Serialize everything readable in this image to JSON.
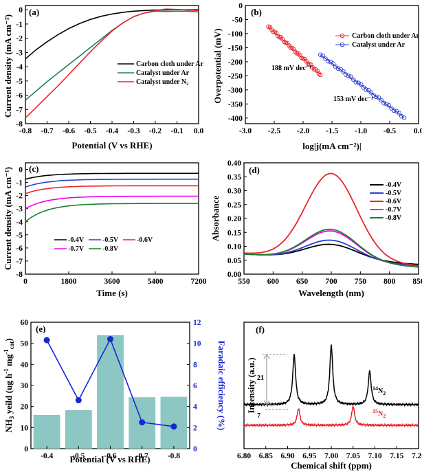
{
  "chart_data": [
    {
      "panel": "(a)",
      "type": "line",
      "xlabel": "Potential (V vs RHE)",
      "ylabel": "Current density (mA cm⁻²)",
      "xlim": [
        -0.8,
        0.0
      ],
      "ylim": [
        -8,
        0.3
      ],
      "xticks": [
        -0.8,
        -0.7,
        -0.6,
        -0.5,
        -0.4,
        -0.3,
        -0.2,
        -0.1,
        0.0
      ],
      "xtick_labels": [
        "-0.8",
        "-0.7",
        "-0.6",
        "-0.5",
        "-0.4",
        "-0.3",
        "-0.2",
        "-0.1",
        "0.0"
      ],
      "yticks": [
        0,
        -1,
        -2,
        -3,
        -4,
        -5,
        -6,
        -7,
        -8
      ],
      "ytick_labels": [
        "0",
        "-1",
        "-2",
        "-3",
        "-4",
        "-5",
        "-6",
        "-7",
        "-8"
      ],
      "legend_position": "center-right",
      "series": [
        {
          "name": "Carbon cloth under Ar",
          "color": "#000000",
          "x": [
            -0.8,
            -0.75,
            -0.7,
            -0.65,
            -0.6,
            -0.55,
            -0.5,
            -0.45,
            -0.4,
            -0.35,
            -0.3,
            -0.25,
            -0.2,
            -0.15,
            -0.1,
            -0.05,
            0.0
          ],
          "y": [
            -3.45,
            -2.8,
            -2.25,
            -1.75,
            -1.32,
            -0.97,
            -0.68,
            -0.46,
            -0.3,
            -0.18,
            -0.1,
            -0.05,
            -0.02,
            -0.01,
            0.0,
            0.0,
            0.0
          ]
        },
        {
          "name": "Catalyst under Ar",
          "color": "#1b7f5e",
          "x": [
            -0.8,
            -0.75,
            -0.7,
            -0.65,
            -0.6,
            -0.55,
            -0.5,
            -0.45,
            -0.4,
            -0.35,
            -0.3,
            -0.25,
            -0.2,
            -0.15,
            -0.1,
            -0.05,
            0.0
          ],
          "y": [
            -6.35,
            -5.7,
            -5.05,
            -4.45,
            -3.85,
            -3.25,
            -2.65,
            -2.05,
            -1.45,
            -0.92,
            -0.48,
            -0.22,
            -0.1,
            -0.12,
            -0.1,
            -0.1,
            -0.15
          ]
        },
        {
          "name": "Catalyst under N₂",
          "color": "#e8252b",
          "x": [
            -0.8,
            -0.75,
            -0.7,
            -0.65,
            -0.6,
            -0.55,
            -0.5,
            -0.45,
            -0.4,
            -0.35,
            -0.3,
            -0.25,
            -0.2,
            -0.15,
            -0.1,
            -0.05,
            0.0
          ],
          "y": [
            -7.6,
            -6.85,
            -6.1,
            -5.35,
            -4.55,
            -3.75,
            -2.95,
            -2.2,
            -1.5,
            -0.92,
            -0.48,
            -0.22,
            -0.05,
            0.05,
            0.02,
            -0.02,
            -0.05
          ]
        }
      ]
    },
    {
      "panel": "(b)",
      "type": "scatter",
      "xlabel": "log|j(mA cm⁻²)|",
      "ylabel": "Overpotential (mV)",
      "xlim": [
        -3.0,
        0.0
      ],
      "ylim": [
        -420,
        0
      ],
      "xticks": [
        -3.0,
        -2.5,
        -2.0,
        -1.5,
        -1.0,
        -0.5,
        0.0
      ],
      "xtick_labels": [
        "-3.0",
        "-2.5",
        "-2.0",
        "-1.5",
        "-1.0",
        "-0.5",
        "0.0"
      ],
      "yticks": [
        0,
        -50,
        -100,
        -150,
        -200,
        -250,
        -300,
        -350,
        -400
      ],
      "ytick_labels": [
        "0",
        "-50",
        "-100",
        "-150",
        "-200",
        "-250",
        "-300",
        "-350",
        "-400"
      ],
      "legend_position": "top-right",
      "annotations": [
        "188 mV dec⁻¹",
        "153 mV dec⁻¹"
      ],
      "series": [
        {
          "name": "Carbon cloth under Ar",
          "color": "#e8252b",
          "marker": "open-circle",
          "x_range": [
            -2.6,
            -1.7
          ],
          "y_range": [
            -75,
            -245
          ]
        },
        {
          "name": "Catalyst under Ar",
          "color": "#2a3fd1",
          "marker": "open-circle",
          "x_range": [
            -1.7,
            -0.25
          ],
          "y_range": [
            -175,
            -398
          ]
        }
      ]
    },
    {
      "panel": "(c)",
      "type": "line",
      "xlabel": "Time (s)",
      "ylabel": "Current density (mA cm⁻¹)",
      "xlim": [
        0,
        7200
      ],
      "ylim": [
        -8,
        0.5
      ],
      "xticks": [
        0,
        1800,
        3600,
        5400,
        7200
      ],
      "xtick_labels": [
        "0",
        "1800",
        "3600",
        "5400",
        "7200"
      ],
      "yticks": [
        0,
        -1,
        -2,
        -3,
        -4,
        -5,
        -6,
        -7,
        -8
      ],
      "ytick_labels": [
        "0",
        "-1",
        "-2",
        "-3",
        "-4",
        "-5",
        "-6",
        "-7",
        "-8"
      ],
      "legend_position": "bottom-center",
      "series": [
        {
          "name": "-0.4V",
          "color": "#000000",
          "start": -0.75,
          "end": -0.3
        },
        {
          "name": "-0.5V",
          "color": "#2a3fd1",
          "start": -1.35,
          "end": -0.75
        },
        {
          "name": "-0.6V",
          "color": "#e8252b",
          "start": -1.85,
          "end": -1.25
        },
        {
          "name": "-0.7V",
          "color": "#e0e",
          "start": -3.0,
          "end": -2.05
        },
        {
          "name": "-0.8V",
          "color": "#1b7f2e",
          "start": -4.0,
          "end": -2.6
        }
      ]
    },
    {
      "panel": "(d)",
      "type": "line",
      "xlabel": "Wavelength (nm)",
      "ylabel": "Absorbance",
      "xlim": [
        550,
        850
      ],
      "ylim": [
        0.0,
        0.4
      ],
      "xticks": [
        550,
        600,
        650,
        700,
        750,
        800,
        850
      ],
      "xtick_labels": [
        "550",
        "600",
        "650",
        "700",
        "750",
        "800",
        "850"
      ],
      "yticks": [
        0.0,
        0.05,
        0.1,
        0.15,
        0.2,
        0.25,
        0.3,
        0.35,
        0.4
      ],
      "ytick_labels": [
        "0.00",
        "0.05",
        "0.10",
        "0.15",
        "0.20",
        "0.25",
        "0.30",
        "0.35",
        "0.40"
      ],
      "legend_position": "top-right",
      "series": [
        {
          "name": "-0.4V",
          "color": "#000000",
          "peak": 0.107,
          "start": 0.072,
          "end": 0.035
        },
        {
          "name": "-0.5V",
          "color": "#2a3fd1",
          "peak": 0.122,
          "start": 0.072,
          "end": 0.03
        },
        {
          "name": "-0.6V",
          "color": "#e8252b",
          "peak": 0.362,
          "start": 0.075,
          "end": 0.03
        },
        {
          "name": "-0.7V",
          "color": "#e0e",
          "peak": 0.155,
          "start": 0.072,
          "end": 0.025
        },
        {
          "name": "-0.8V",
          "color": "#1b7f2e",
          "peak": 0.161,
          "start": 0.072,
          "end": 0.025
        }
      ]
    },
    {
      "panel": "(e)",
      "type": "bar",
      "categories": [
        "-0.4",
        "-0.5",
        "-0.6",
        "-0.7",
        "-0.8"
      ],
      "xlabel": "Potential (V vs RHE)",
      "ylabel": "NH₃ yeild (ug h⁻¹ mg⁻¹cat)",
      "ylabel_parts": {
        "a": "NH",
        "b": "3",
        "c": " yeild (ug h",
        "d": "-1",
        "e": " mg",
        "f": "-1",
        "g": "cat",
        "h": ")"
      },
      "y2label": "Faradaic efficiency (%)",
      "ylim": [
        0,
        60
      ],
      "y2lim": [
        0,
        12
      ],
      "yticks": [
        0,
        10,
        20,
        30,
        40,
        50,
        60
      ],
      "ytick_labels": [
        "0",
        "10",
        "20",
        "30",
        "40",
        "50",
        "60"
      ],
      "y2ticks": [
        0,
        2,
        4,
        6,
        8,
        10,
        12
      ],
      "y2tick_labels": [
        "0",
        "2",
        "4",
        "6",
        "8",
        "10",
        "12"
      ],
      "bar_color": "#8cc7c3",
      "line_color": "#1a26d6",
      "series": [
        {
          "name": "NH₃ yield",
          "values": [
            16.0,
            18.3,
            53.8,
            24.4,
            24.6
          ]
        },
        {
          "name": "Faradaic efficiency",
          "axis": "right",
          "values": [
            10.3,
            4.6,
            10.4,
            2.5,
            2.1
          ]
        }
      ]
    },
    {
      "panel": "(f)",
      "type": "line",
      "xlabel": "Chemical shift (ppm)",
      "ylabel": "Intensity (a.u.)",
      "xlim": [
        6.8,
        7.2
      ],
      "xticks": [
        6.8,
        6.85,
        6.9,
        6.95,
        7.0,
        7.05,
        7.1,
        7.15,
        7.2
      ],
      "xtick_labels": [
        "6.80",
        "6.85",
        "6.90",
        "6.95",
        "7.00",
        "7.05",
        "7.10",
        "7.15",
        "7.20"
      ],
      "annotations": [
        "21",
        "7"
      ],
      "series": [
        {
          "name": "¹⁴N₂",
          "label_main": "N",
          "label_sup": "14",
          "label_sub": "2",
          "color": "#000000",
          "peaks": [
            6.915,
            7.0,
            7.088
          ],
          "heights": [
            21,
            25,
            14
          ]
        },
        {
          "name": "¹⁵N₂",
          "label_main": "N",
          "label_sup": "15",
          "label_sub": "2",
          "color": "#e8252b",
          "peaks": [
            6.925,
            7.05
          ],
          "heights": [
            7,
            8
          ]
        }
      ]
    }
  ]
}
